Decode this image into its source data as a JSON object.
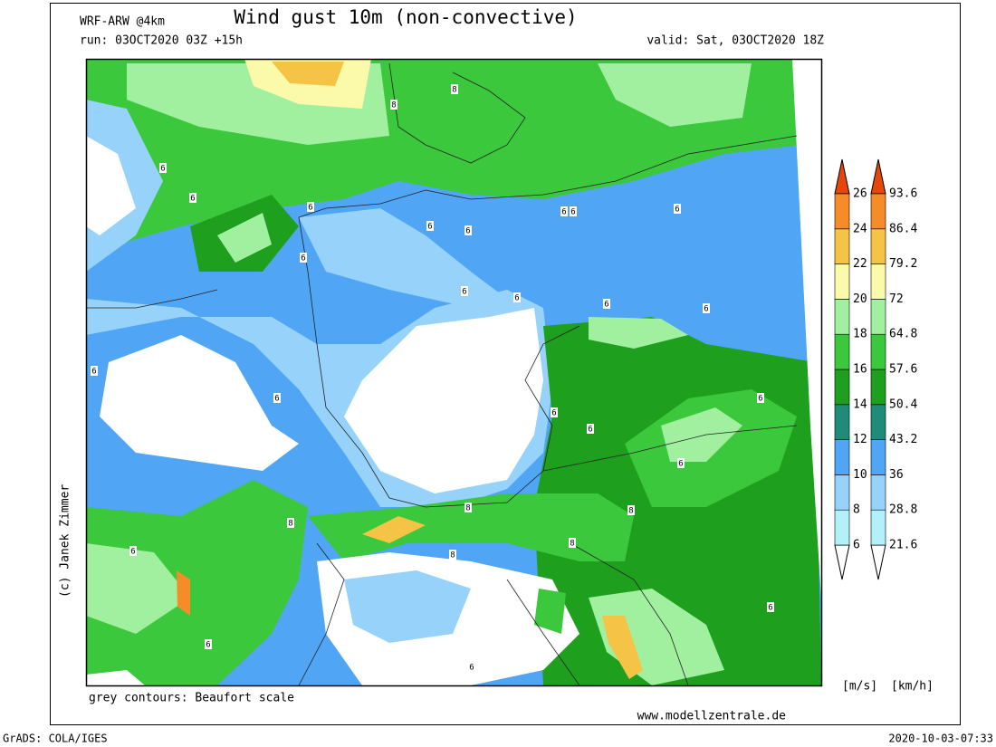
{
  "header": {
    "model": "WRF-ARW @4km",
    "title": "Wind gust 10m (non-convective)",
    "run": "run: 03OCT2020 03Z +15h",
    "valid": "valid: Sat, 03OCT2020 18Z"
  },
  "credit": "(c) Janek Zimmer",
  "note": "grey contours: Beaufort scale",
  "website": "www.modellzentrale.de",
  "colorbar": {
    "unit_ms": "[m/s]",
    "unit_kmh": "[km/h]",
    "ms_ticks": [
      6,
      8,
      10,
      12,
      14,
      16,
      18,
      20,
      22,
      24,
      26
    ],
    "kmh_ticks": [
      21.6,
      28.8,
      36,
      43.2,
      50.4,
      57.6,
      64.8,
      72,
      79.2,
      86.4,
      93.6
    ],
    "colors": [
      "#ffffff",
      "#b4f0fa",
      "#96d2fa",
      "#50a5f5",
      "#1e8c78",
      "#1ea01e",
      "#3cc83c",
      "#a0f0a0",
      "#fafaaa",
      "#f5c346",
      "#f58c28",
      "#e6460a"
    ]
  },
  "contour_labels": [
    8,
    8,
    6,
    6,
    6,
    6,
    6,
    6,
    6,
    6,
    6,
    6,
    6,
    6,
    6,
    6,
    6,
    6,
    6,
    6,
    8,
    8,
    6,
    8,
    8,
    8,
    6,
    6,
    6,
    6
  ],
  "footer": {
    "software": "GrADS: COLA/IGES",
    "timestamp": "2020-10-03-07:33"
  }
}
